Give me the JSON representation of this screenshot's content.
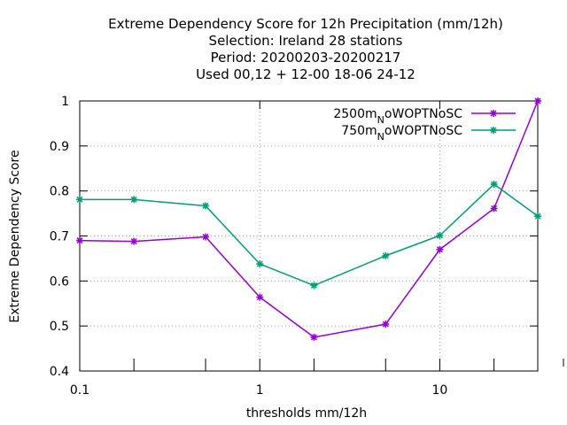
{
  "chart_data": {
    "type": "line",
    "title_lines": [
      "Extreme Dependency Score  for 12h Precipitation (mm/12h)",
      "Selection: Ireland      28 stations",
      "Period: 20200203-20200217",
      "Used  00,12  + 12-00 18-06 24-12"
    ],
    "xlabel": "thresholds mm/12h",
    "ylabel": "Extreme Dependency Score",
    "x_scale": "log",
    "xlim": [
      0.1,
      35
    ],
    "ylim": [
      0.4,
      1.0
    ],
    "x_ticks": [
      {
        "value": 0.1,
        "label": "0.1"
      },
      {
        "value": 1,
        "label": "1"
      },
      {
        "value": 10,
        "label": "10"
      }
    ],
    "x_minor_ticks": [
      0.2,
      0.5,
      2,
      5,
      20,
      35
    ],
    "y_ticks": [
      {
        "value": 0.4,
        "label": "0.4"
      },
      {
        "value": 0.5,
        "label": "0.5"
      },
      {
        "value": 0.6,
        "label": "0.6"
      },
      {
        "value": 0.7,
        "label": "0.7"
      },
      {
        "value": 0.8,
        "label": "0.8"
      },
      {
        "value": 0.9,
        "label": "0.9"
      },
      {
        "value": 1.0,
        "label": "1"
      }
    ],
    "grid": true,
    "legend_position": "top-right",
    "x": [
      0.1,
      0.2,
      0.5,
      1,
      2,
      5,
      10,
      20,
      35
    ],
    "series": [
      {
        "name_main": "2500m",
        "name_sub": "N",
        "name_rest": "oWOPTNoSC",
        "color": "#9400d3",
        "values": [
          0.69,
          0.688,
          0.698,
          0.564,
          0.475,
          0.504,
          0.67,
          0.761,
          1.0
        ]
      },
      {
        "name_main": "750m",
        "name_sub": "N",
        "name_rest": "oWOPTNoSC",
        "color": "#009e73",
        "values": [
          0.781,
          0.781,
          0.767,
          0.638,
          0.59,
          0.656,
          0.701,
          0.815,
          0.744
        ]
      }
    ]
  }
}
